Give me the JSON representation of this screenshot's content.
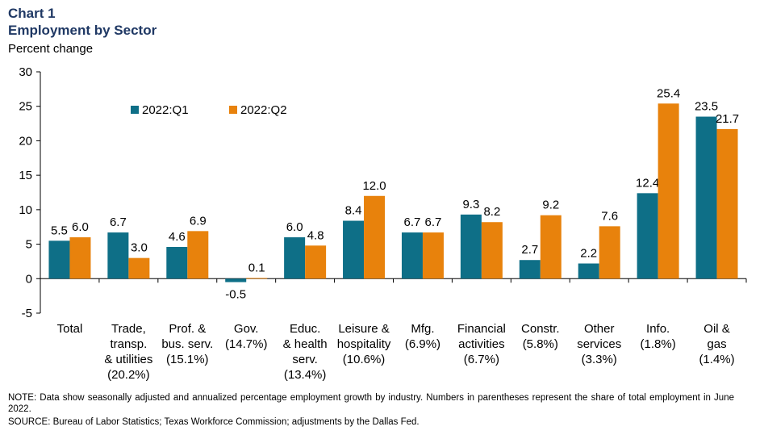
{
  "header": {
    "chart_number": "Chart 1",
    "title": "Employment by Sector",
    "subtitle": "Percent change"
  },
  "footer": {
    "note": "NOTE: Data show seasonally adjusted and annualized percentage employment growth by industry. Numbers in parentheses represent the share of total employment in June 2022.",
    "source": "SOURCE: Bureau of Labor Statistics; Texas Workforce Commission; adjustments by the Dallas Fed."
  },
  "colors": {
    "q1": "#0e6f87",
    "q2": "#e8820c",
    "axis": "#000000"
  },
  "chart_data": {
    "type": "bar",
    "title": "Employment by Sector",
    "ylabel": "Percent change",
    "xlabel": "",
    "ylim": [
      -5,
      30
    ],
    "yticks": [
      -5,
      0,
      5,
      10,
      15,
      20,
      25,
      30
    ],
    "legend": "top-left",
    "categories": [
      [
        "Total"
      ],
      [
        "Trade,",
        "transp.",
        "& utilities",
        "(20.2%)"
      ],
      [
        "Prof. &",
        "bus. serv.",
        "(15.1%)"
      ],
      [
        "Gov.",
        "(14.7%)"
      ],
      [
        "Educ.",
        "& health",
        "serv.",
        "(13.4%)"
      ],
      [
        "Leisure &",
        "hospitality",
        "(10.6%)"
      ],
      [
        "Mfg.",
        "(6.9%)"
      ],
      [
        "Financial",
        "activities",
        "(6.7%)"
      ],
      [
        "Constr.",
        "(5.8%)"
      ],
      [
        "Other",
        "services",
        "(3.3%)"
      ],
      [
        "Info.",
        "(1.8%)"
      ],
      [
        "Oil &",
        "gas",
        "(1.4%)"
      ]
    ],
    "series": [
      {
        "name": "2022:Q1",
        "values": [
          5.5,
          6.7,
          4.6,
          -0.5,
          6.0,
          8.4,
          6.7,
          9.3,
          2.7,
          2.2,
          12.4,
          23.5
        ]
      },
      {
        "name": "2022:Q2",
        "values": [
          6.0,
          3.0,
          6.9,
          0.1,
          4.8,
          12.0,
          6.7,
          8.2,
          9.2,
          7.6,
          25.4,
          21.7
        ]
      }
    ]
  }
}
